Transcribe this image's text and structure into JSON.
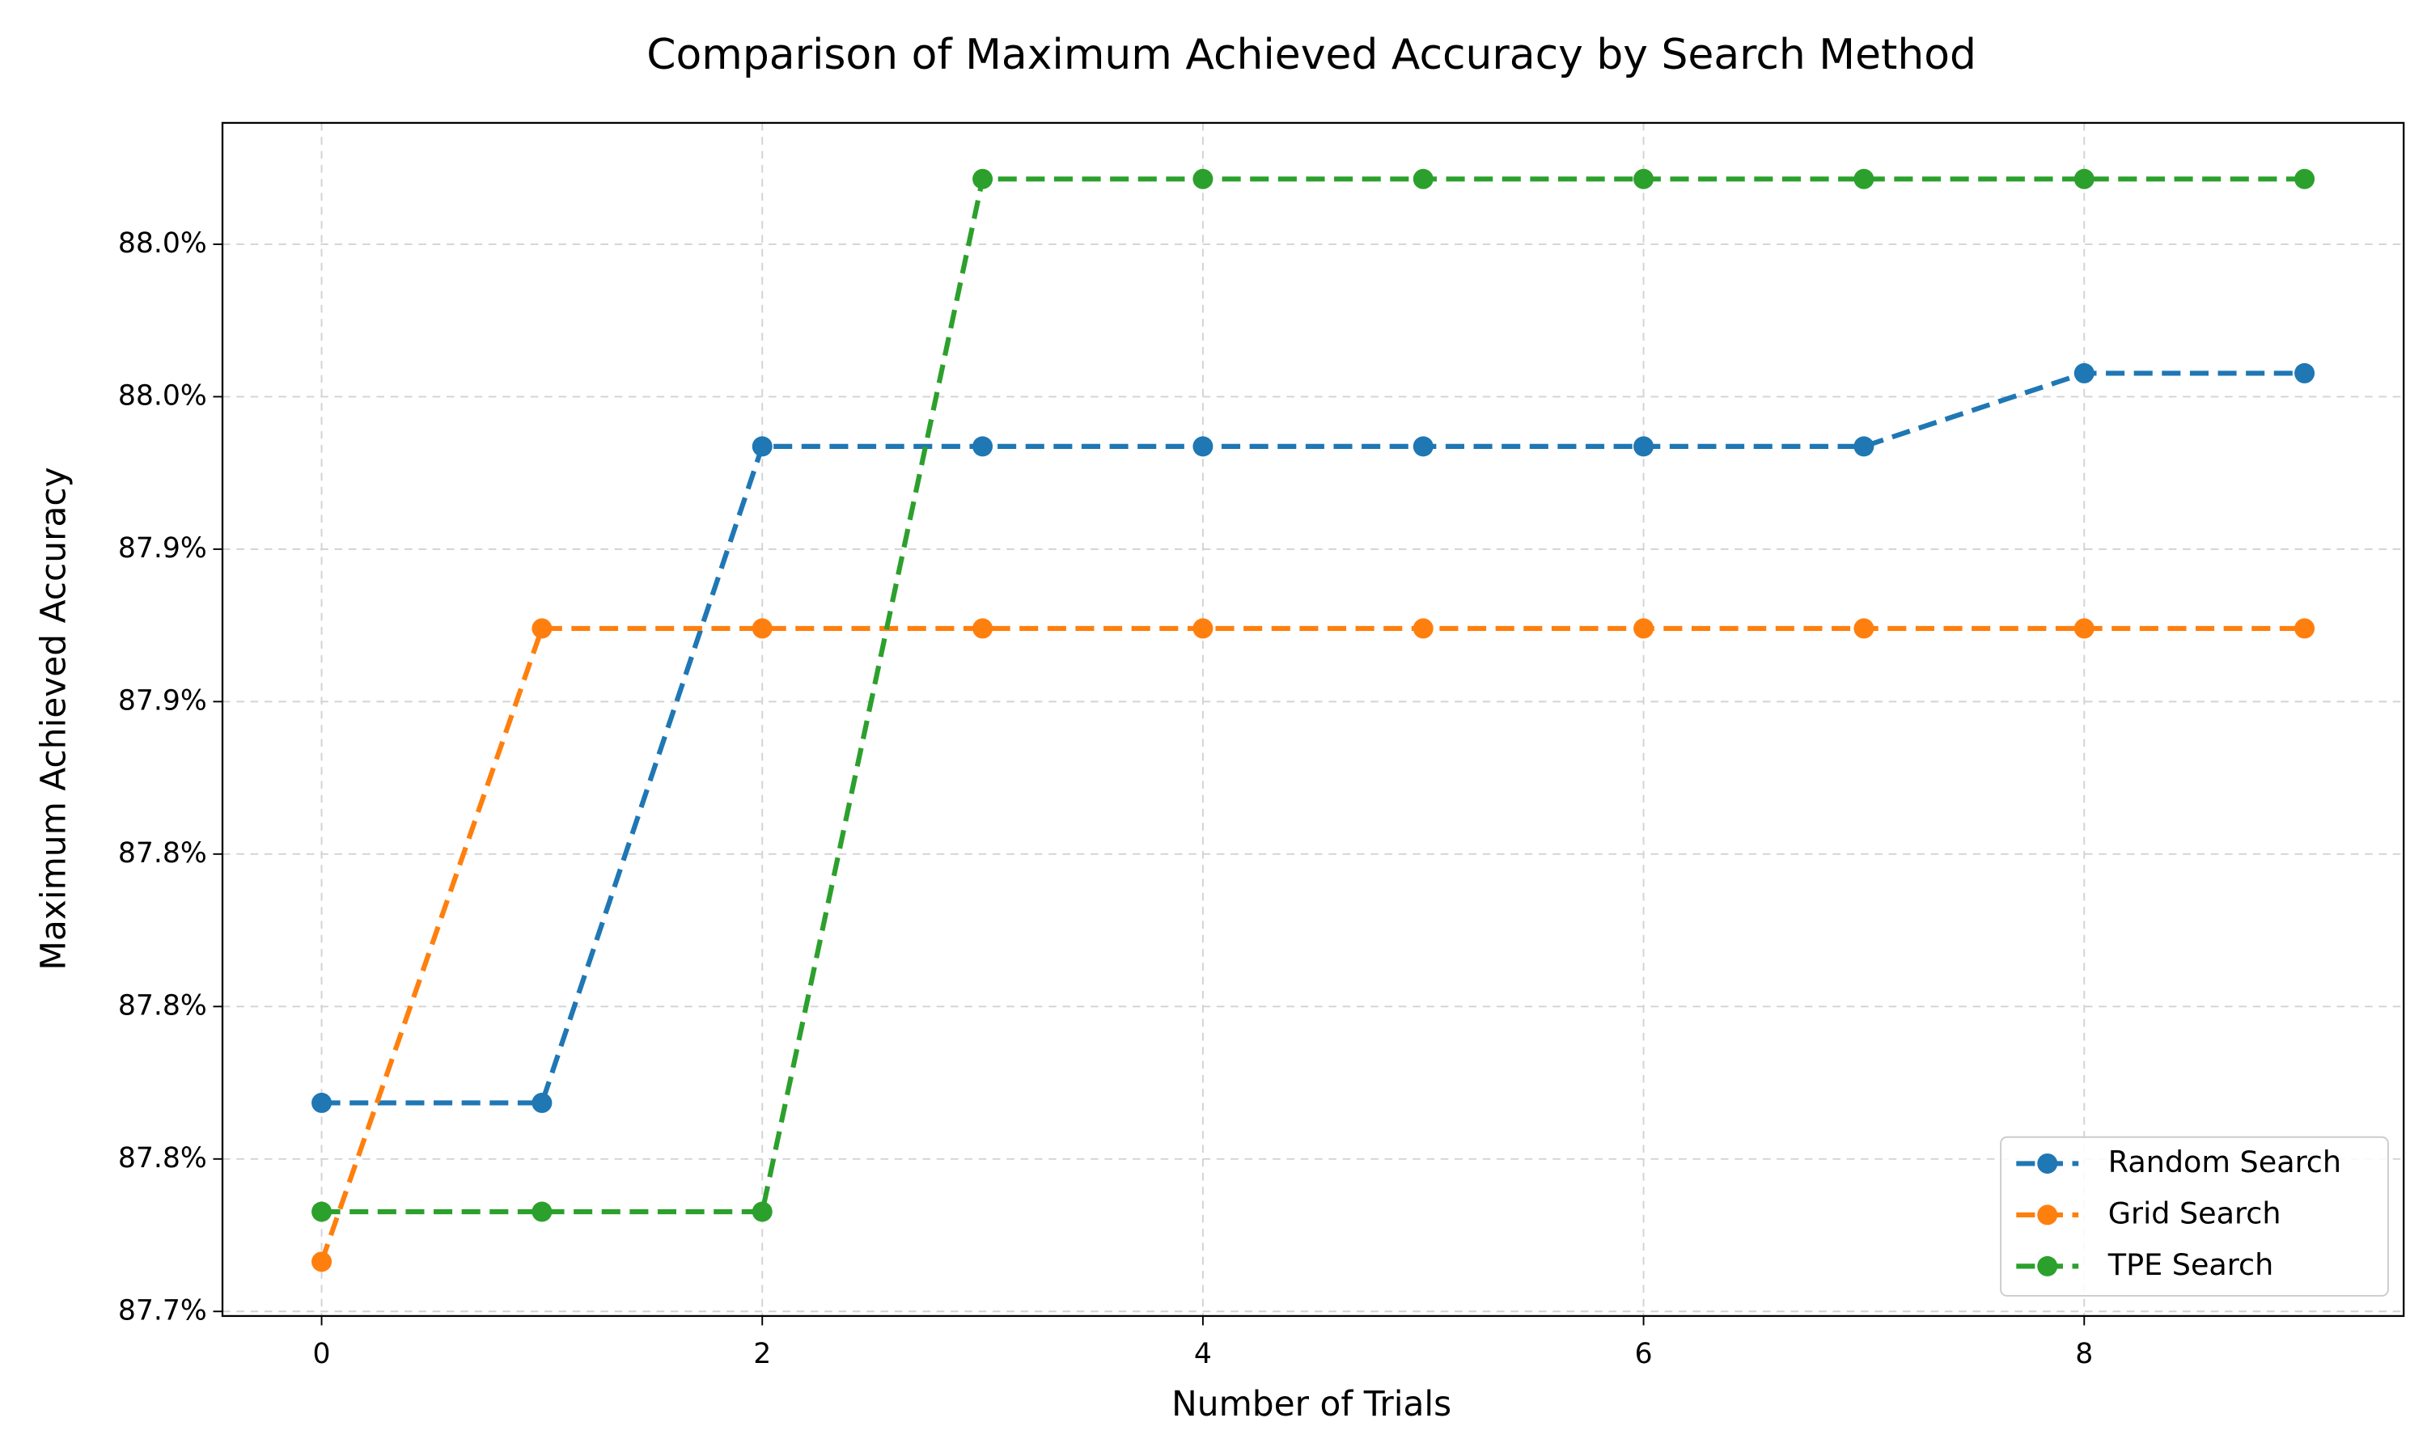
{
  "chart_data": {
    "type": "line",
    "title": "Comparison of Maximum Achieved Accuracy by Search Method",
    "x_label": "Number of Trials",
    "y_label": "Maximum Achieved Accuracy",
    "x": [
      0,
      1,
      2,
      3,
      4,
      5,
      6,
      7,
      8,
      9
    ],
    "series": [
      {
        "name": "Random Search",
        "color": "#1f77b4",
        "values": [
          87.7684,
          87.7684,
          87.9837,
          87.9837,
          87.9837,
          87.9837,
          87.9837,
          87.9837,
          88.0077,
          88.0077
        ]
      },
      {
        "name": "Grid Search",
        "color": "#ff7f0e",
        "values": [
          87.7163,
          87.924,
          87.924,
          87.924,
          87.924,
          87.924,
          87.924,
          87.924,
          87.924,
          87.924
        ]
      },
      {
        "name": "TPE Search",
        "color": "#2ca02c",
        "values": [
          87.7327,
          87.7327,
          87.7327,
          88.0714,
          88.0714,
          88.0714,
          88.0714,
          88.0714,
          88.0714,
          88.0714
        ]
      }
    ],
    "xlim": [
      -0.45,
      9.45
    ],
    "xticks": [
      0,
      2,
      4,
      6,
      8
    ],
    "ylim": [
      87.6985,
      88.0898
    ],
    "yticks": [
      {
        "value": 87.7,
        "label": "87.7%"
      },
      {
        "value": 87.75,
        "label": "87.8%"
      },
      {
        "value": 87.8,
        "label": "87.8%"
      },
      {
        "value": 87.85,
        "label": "87.8%"
      },
      {
        "value": 87.9,
        "label": "87.9%"
      },
      {
        "value": 87.95,
        "label": "87.9%"
      },
      {
        "value": 88.0,
        "label": "88.0%"
      },
      {
        "value": 88.05,
        "label": "88.0%"
      }
    ],
    "grid": true,
    "line_style": "dashed",
    "markers": true,
    "legend_position": "lower-right"
  }
}
